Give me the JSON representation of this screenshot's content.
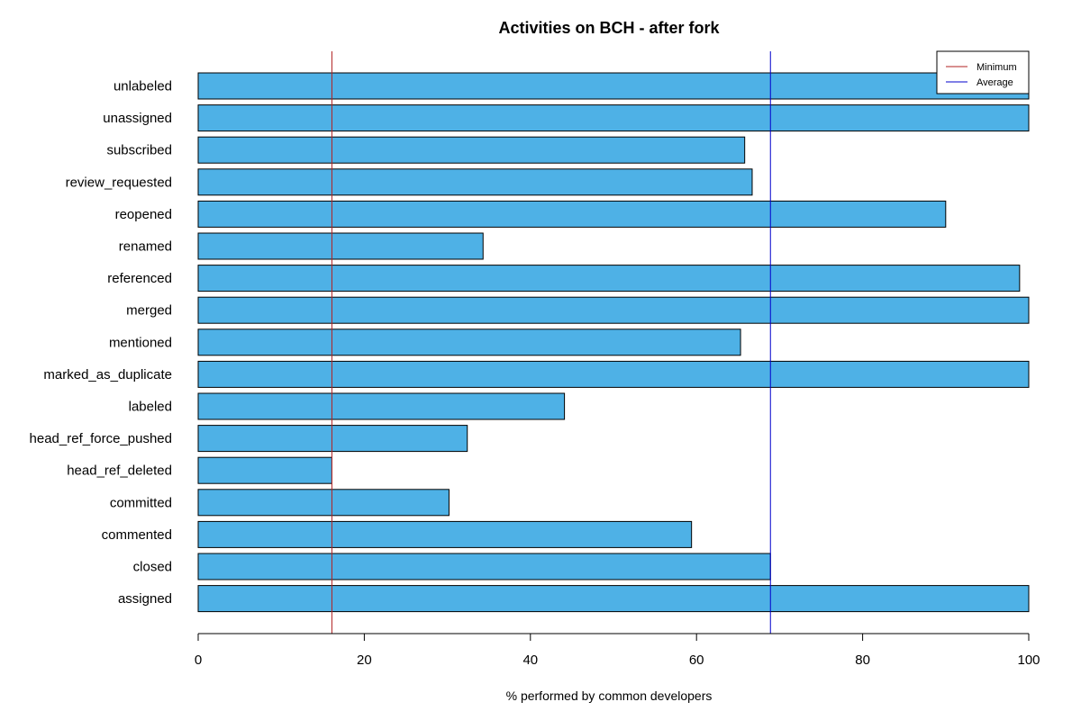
{
  "chart_data": {
    "type": "bar",
    "orientation": "horizontal",
    "title": "Activities on BCH - after fork",
    "xlabel": "% performed by common developers",
    "ylabel": "",
    "xlim": [
      0,
      100
    ],
    "xticks": [
      0,
      20,
      40,
      60,
      80,
      100
    ],
    "categories": [
      "assigned",
      "closed",
      "commented",
      "committed",
      "head_ref_deleted",
      "head_ref_force_pushed",
      "labeled",
      "marked_as_duplicate",
      "mentioned",
      "merged",
      "referenced",
      "renamed",
      "reopened",
      "review_requested",
      "subscribed",
      "unassigned",
      "unlabeled"
    ],
    "values": [
      100,
      68.9,
      59.4,
      30.2,
      16.1,
      32.4,
      44.1,
      100,
      65.3,
      100,
      98.9,
      34.3,
      90.0,
      66.7,
      65.8,
      100,
      100
    ],
    "reference_lines": [
      {
        "name": "Minimum",
        "value": 16.1,
        "color": "#b22222"
      },
      {
        "name": "Average",
        "value": 68.9,
        "color": "#0000cc"
      }
    ],
    "bar_color": "#4eb1e6",
    "legend": {
      "placement": "top-right",
      "entries": [
        {
          "label": "Minimum",
          "color": "#b22222"
        },
        {
          "label": "Average",
          "color": "#0000cc"
        }
      ]
    },
    "grid": false
  }
}
